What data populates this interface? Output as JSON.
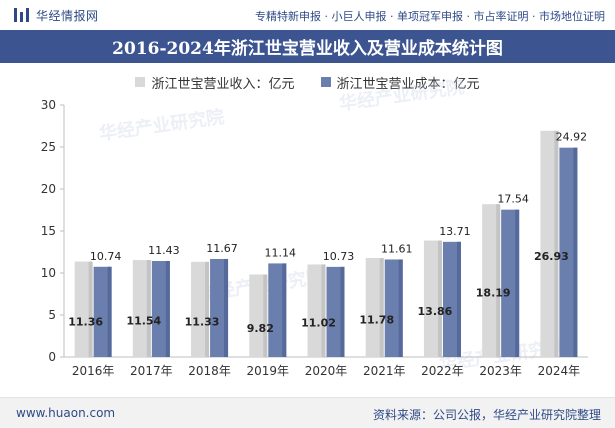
{
  "header": {
    "brand_name": "华经情报网",
    "tagline": "专精特新申报 · 小巨人申报 · 单项冠军申报 · 市占率证明 · 市场地位证明"
  },
  "colors": {
    "title_bg": "#3c5590",
    "revenue": "#d9d9d9",
    "cost": "#6a7fae"
  },
  "chart_data": {
    "type": "bar",
    "title": "2016-2024年浙江世宝营业收入及营业成本统计图",
    "categories": [
      "2016年",
      "2017年",
      "2018年",
      "2019年",
      "2020年",
      "2021年",
      "2022年",
      "2023年",
      "2024年"
    ],
    "series": [
      {
        "name": "浙江世宝营业收入：亿元",
        "values": [
          11.36,
          11.54,
          11.33,
          9.82,
          11.02,
          11.78,
          13.86,
          18.19,
          26.93
        ]
      },
      {
        "name": "浙江世宝营业成本：亿元",
        "values": [
          10.74,
          11.43,
          11.67,
          11.14,
          10.73,
          11.61,
          13.71,
          17.54,
          24.92
        ]
      }
    ],
    "yticks": [
      0,
      5,
      10,
      15,
      20,
      25,
      30
    ],
    "ylim": [
      0,
      30
    ],
    "xlabel": "",
    "ylabel": "",
    "legend_position": "top-center",
    "grid": false
  },
  "watermark": "华经产业研究院",
  "footer": {
    "url": "www.huaon.com",
    "source": "资料来源：公司公报，华经产业研究院整理"
  }
}
